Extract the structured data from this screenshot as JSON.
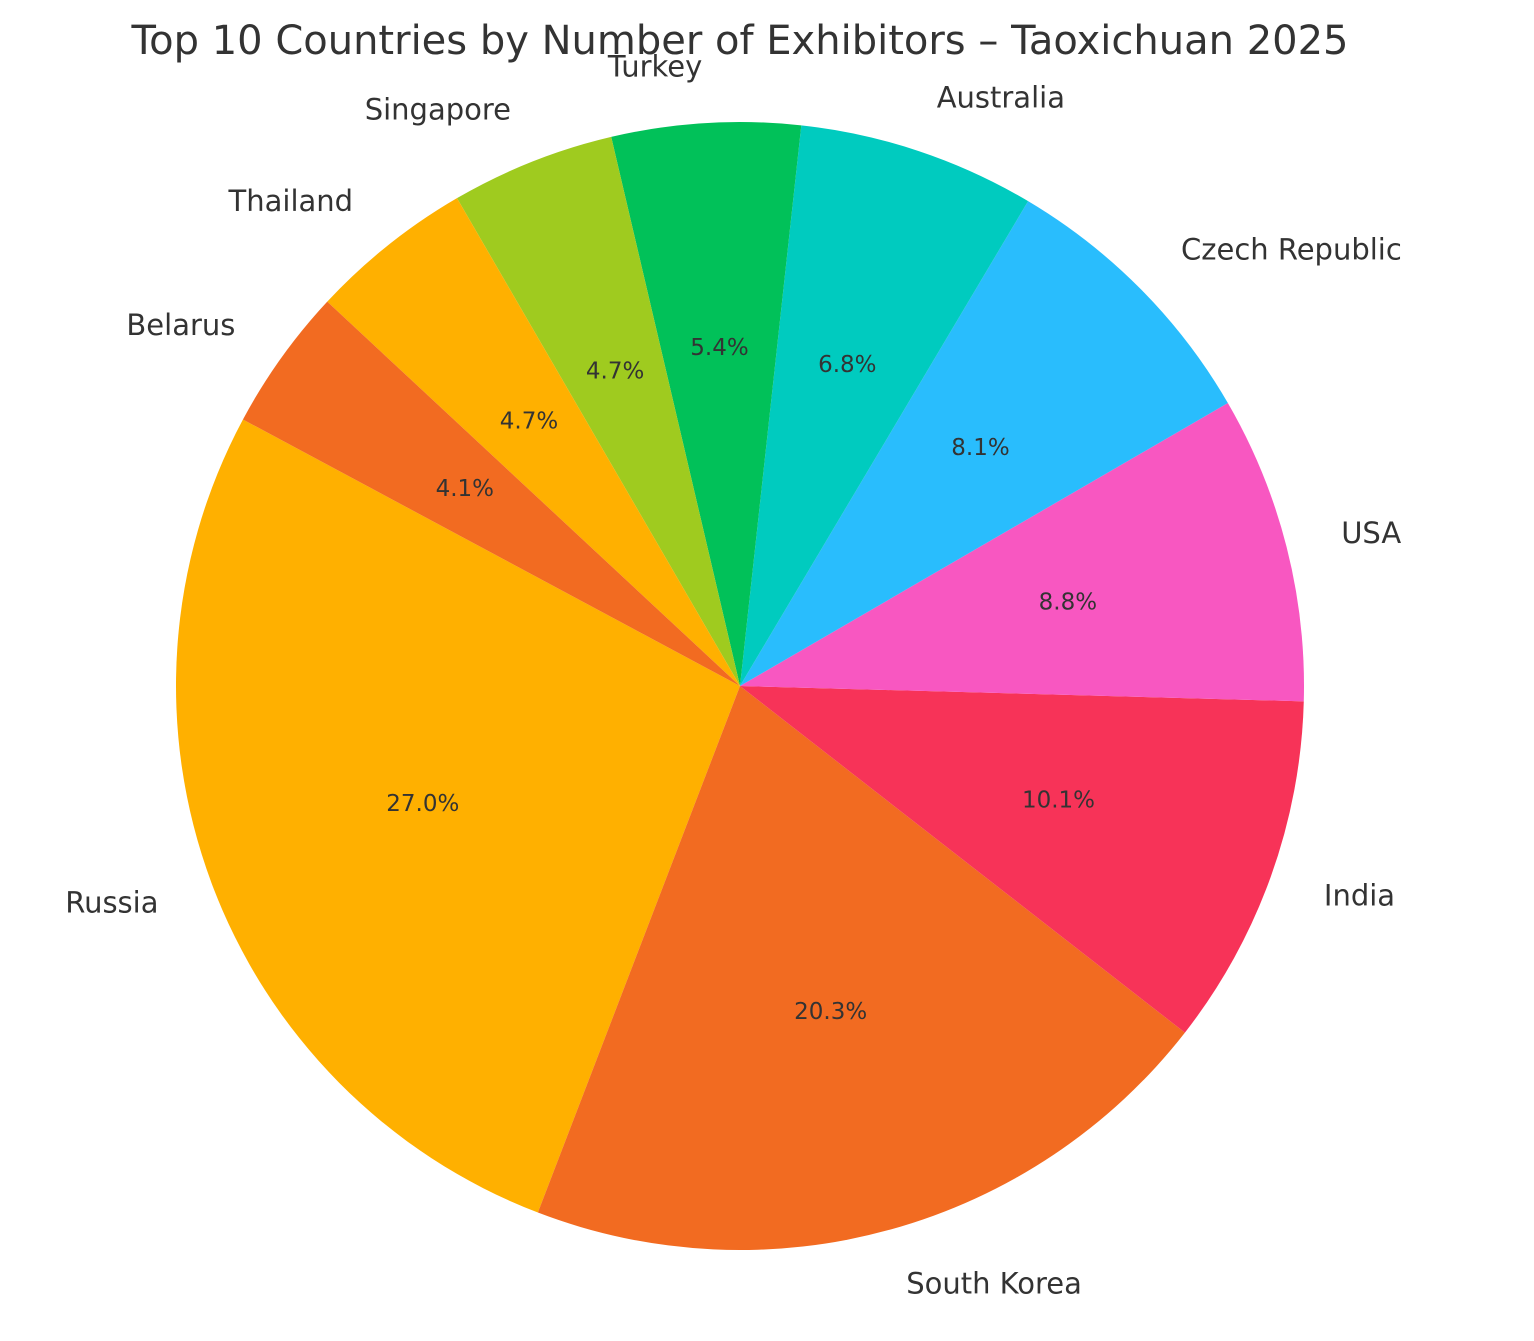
{
  "chart_data": {
    "type": "pie",
    "title": "Top 10 Countries by Number of Exhibitors – Taoxichuan 2025",
    "start_angle_deg": 151.8,
    "direction": "counterclockwise",
    "slices": [
      {
        "label": "Russia",
        "value": 27.0,
        "pct_label": "27.0%",
        "color": "#FFB000"
      },
      {
        "label": "South Korea",
        "value": 20.3,
        "pct_label": "20.3%",
        "color": "#F26B21"
      },
      {
        "label": "India",
        "value": 10.1,
        "pct_label": "10.1%",
        "color": "#F73358"
      },
      {
        "label": "USA",
        "value": 8.8,
        "pct_label": "8.8%",
        "color": "#F857C1"
      },
      {
        "label": "Czech Republic",
        "value": 8.1,
        "pct_label": "8.1%",
        "color": "#29BDFD"
      },
      {
        "label": "Australia",
        "value": 6.8,
        "pct_label": "6.8%",
        "color": "#00CBBF"
      },
      {
        "label": "Turkey",
        "value": 5.4,
        "pct_label": "5.4%",
        "color": "#01C159"
      },
      {
        "label": "Singapore",
        "value": 4.7,
        "pct_label": "4.7%",
        "color": "#9FCB1F"
      },
      {
        "label": "Thailand",
        "value": 4.7,
        "pct_label": "4.7%",
        "color": "#FFB000"
      },
      {
        "label": "Belarus",
        "value": 4.1,
        "pct_label": "4.1%",
        "color": "#F26B21"
      }
    ]
  }
}
